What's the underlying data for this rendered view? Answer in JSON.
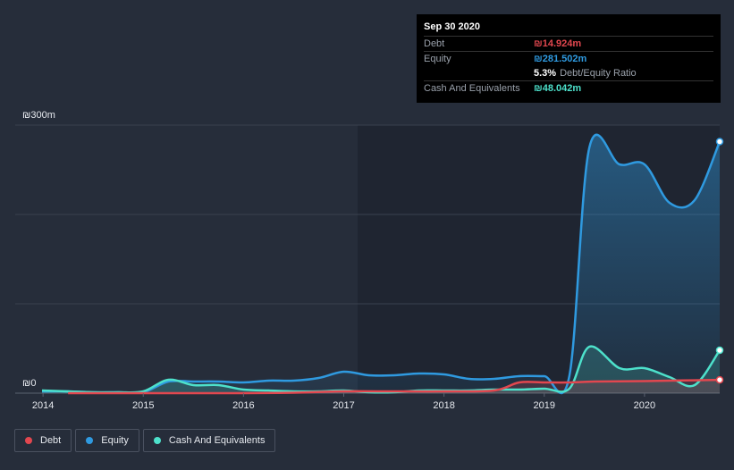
{
  "chart_data": {
    "type": "area",
    "title": "",
    "currency_prefix": "₪",
    "y_label_top": "₪300m",
    "y_label_bottom": "₪0",
    "ylim": [
      0,
      300
    ],
    "xlim": [
      2013.99,
      2020.75
    ],
    "x_ticks": [
      "2014",
      "2015",
      "2016",
      "2017",
      "2018",
      "2019",
      "2020"
    ],
    "series": [
      {
        "name": "Debt",
        "color": "#e2474f",
        "points": [
          [
            2014.25,
            0
          ],
          [
            2015.0,
            0
          ],
          [
            2016.0,
            0
          ],
          [
            2016.5,
            0.5
          ],
          [
            2017.0,
            2
          ],
          [
            2017.5,
            2
          ],
          [
            2018.0,
            2
          ],
          [
            2018.5,
            3
          ],
          [
            2018.75,
            12
          ],
          [
            2019.0,
            12
          ],
          [
            2019.25,
            12
          ],
          [
            2019.5,
            13
          ],
          [
            2020.0,
            13.5
          ],
          [
            2020.25,
            14
          ],
          [
            2020.75,
            14.9
          ]
        ]
      },
      {
        "name": "Equity",
        "color": "#2f9ae0",
        "points": [
          [
            2013.99,
            2
          ],
          [
            2014.25,
            2
          ],
          [
            2014.5,
            1
          ],
          [
            2014.75,
            1
          ],
          [
            2015.0,
            1
          ],
          [
            2015.25,
            13
          ],
          [
            2015.5,
            13
          ],
          [
            2015.75,
            13
          ],
          [
            2016.0,
            12
          ],
          [
            2016.25,
            14
          ],
          [
            2016.5,
            14
          ],
          [
            2016.75,
            17
          ],
          [
            2017.0,
            24
          ],
          [
            2017.25,
            20
          ],
          [
            2017.5,
            20
          ],
          [
            2017.75,
            22
          ],
          [
            2018.0,
            21
          ],
          [
            2018.25,
            16
          ],
          [
            2018.5,
            16
          ],
          [
            2018.75,
            19
          ],
          [
            2019.0,
            19
          ],
          [
            2019.25,
            19
          ],
          [
            2019.45,
            275
          ],
          [
            2019.75,
            256
          ],
          [
            2020.0,
            256
          ],
          [
            2020.25,
            213
          ],
          [
            2020.5,
            216
          ],
          [
            2020.75,
            281.5
          ]
        ]
      },
      {
        "name": "Cash And Equivalents",
        "color": "#4de1cb",
        "points": [
          [
            2013.99,
            3
          ],
          [
            2014.25,
            2
          ],
          [
            2014.5,
            1
          ],
          [
            2014.75,
            1
          ],
          [
            2015.0,
            2
          ],
          [
            2015.25,
            15
          ],
          [
            2015.5,
            9
          ],
          [
            2015.75,
            9
          ],
          [
            2016.0,
            4
          ],
          [
            2016.25,
            3
          ],
          [
            2016.5,
            2
          ],
          [
            2016.75,
            2
          ],
          [
            2017.0,
            3
          ],
          [
            2017.25,
            1
          ],
          [
            2017.5,
            1
          ],
          [
            2017.75,
            3
          ],
          [
            2018.0,
            3
          ],
          [
            2018.25,
            3
          ],
          [
            2018.5,
            4
          ],
          [
            2018.75,
            4
          ],
          [
            2019.0,
            5
          ],
          [
            2019.25,
            5
          ],
          [
            2019.45,
            52
          ],
          [
            2019.75,
            28
          ],
          [
            2020.0,
            28
          ],
          [
            2020.25,
            18
          ],
          [
            2020.5,
            9
          ],
          [
            2020.75,
            48
          ]
        ]
      }
    ]
  },
  "tooltip": {
    "date": "Sep 30 2020",
    "debt_label": "Debt",
    "debt_value": "₪14.924m",
    "equity_label": "Equity",
    "equity_value": "₪281.502m",
    "ratio_value": "5.3%",
    "ratio_label": "Debt/Equity Ratio",
    "cash_label": "Cash And Equivalents",
    "cash_value": "₪48.042m"
  },
  "legend": {
    "debt": "Debt",
    "equity": "Equity",
    "cash": "Cash And Equivalents"
  },
  "colors": {
    "debt": "#e2474f",
    "equity": "#2f9ae0",
    "cash": "#4de1cb",
    "background": "#262d3a"
  }
}
